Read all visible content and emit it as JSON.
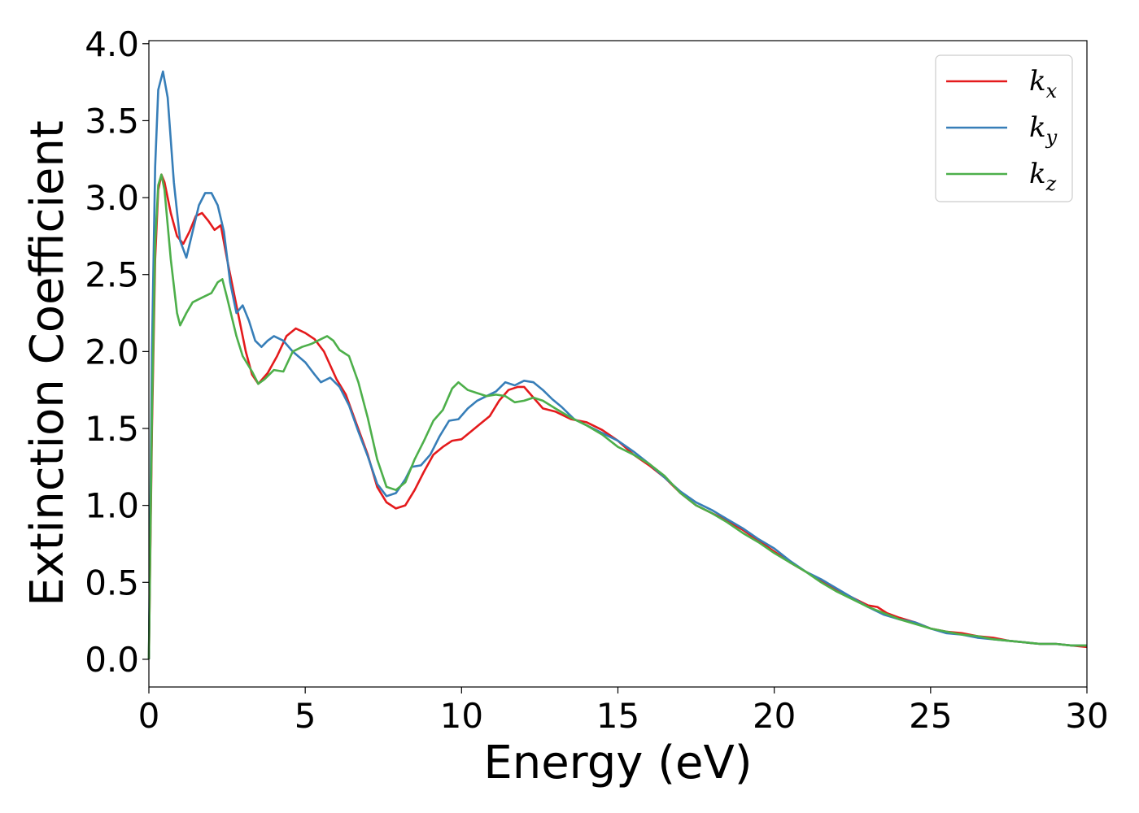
{
  "chart_data": {
    "type": "line",
    "title": "",
    "xlabel": "Energy (eV)",
    "ylabel": "Extinction Coefficient",
    "xlim": [
      0,
      30
    ],
    "ylim": [
      -0.18,
      4.02
    ],
    "xticks": [
      0,
      5,
      10,
      15,
      20,
      25,
      30
    ],
    "xtick_labels": [
      "0",
      "5",
      "10",
      "15",
      "20",
      "25",
      "30"
    ],
    "yticks": [
      0.0,
      0.5,
      1.0,
      1.5,
      2.0,
      2.5,
      3.0,
      3.5,
      4.0
    ],
    "ytick_labels": [
      "0.0",
      "0.5",
      "1.0",
      "1.5",
      "2.0",
      "2.5",
      "3.0",
      "3.5",
      "4.0"
    ],
    "grid": false,
    "legend_position": "top-right",
    "series": [
      {
        "name": "k",
        "subscript": "x",
        "color": "#e41a1c",
        "points": [
          [
            0,
            0
          ],
          [
            0.1,
            1.5
          ],
          [
            0.2,
            2.6
          ],
          [
            0.3,
            3.05
          ],
          [
            0.4,
            3.15
          ],
          [
            0.5,
            3.1
          ],
          [
            0.7,
            2.9
          ],
          [
            0.9,
            2.75
          ],
          [
            1.1,
            2.7
          ],
          [
            1.3,
            2.78
          ],
          [
            1.5,
            2.88
          ],
          [
            1.7,
            2.9
          ],
          [
            1.9,
            2.85
          ],
          [
            2.1,
            2.79
          ],
          [
            2.3,
            2.82
          ],
          [
            2.5,
            2.6
          ],
          [
            2.8,
            2.3
          ],
          [
            3.1,
            2.0
          ],
          [
            3.3,
            1.85
          ],
          [
            3.5,
            1.79
          ],
          [
            3.8,
            1.86
          ],
          [
            4.1,
            1.97
          ],
          [
            4.4,
            2.1
          ],
          [
            4.7,
            2.15
          ],
          [
            5.0,
            2.12
          ],
          [
            5.3,
            2.08
          ],
          [
            5.6,
            2.0
          ],
          [
            6.0,
            1.82
          ],
          [
            6.3,
            1.72
          ],
          [
            6.6,
            1.55
          ],
          [
            7.0,
            1.33
          ],
          [
            7.3,
            1.12
          ],
          [
            7.6,
            1.02
          ],
          [
            7.9,
            0.98
          ],
          [
            8.2,
            1.0
          ],
          [
            8.5,
            1.1
          ],
          [
            8.8,
            1.22
          ],
          [
            9.1,
            1.33
          ],
          [
            9.4,
            1.38
          ],
          [
            9.7,
            1.42
          ],
          [
            10.0,
            1.43
          ],
          [
            10.3,
            1.48
          ],
          [
            10.6,
            1.53
          ],
          [
            10.9,
            1.58
          ],
          [
            11.2,
            1.68
          ],
          [
            11.5,
            1.75
          ],
          [
            11.8,
            1.77
          ],
          [
            12.0,
            1.77
          ],
          [
            12.3,
            1.7
          ],
          [
            12.6,
            1.63
          ],
          [
            13.0,
            1.61
          ],
          [
            13.5,
            1.56
          ],
          [
            14.0,
            1.54
          ],
          [
            14.5,
            1.49
          ],
          [
            15.0,
            1.42
          ],
          [
            15.5,
            1.33
          ],
          [
            16.0,
            1.26
          ],
          [
            16.5,
            1.18
          ],
          [
            17.0,
            1.08
          ],
          [
            17.5,
            1.0
          ],
          [
            18.0,
            0.95
          ],
          [
            18.5,
            0.9
          ],
          [
            19.0,
            0.84
          ],
          [
            19.5,
            0.77
          ],
          [
            20.0,
            0.7
          ],
          [
            20.5,
            0.63
          ],
          [
            21.0,
            0.57
          ],
          [
            21.5,
            0.51
          ],
          [
            22.0,
            0.45
          ],
          [
            22.5,
            0.4
          ],
          [
            23.0,
            0.35
          ],
          [
            23.3,
            0.34
          ],
          [
            23.6,
            0.3
          ],
          [
            24.0,
            0.27
          ],
          [
            24.5,
            0.24
          ],
          [
            25.0,
            0.2
          ],
          [
            25.5,
            0.18
          ],
          [
            26.0,
            0.17
          ],
          [
            26.5,
            0.15
          ],
          [
            27.0,
            0.14
          ],
          [
            27.5,
            0.12
          ],
          [
            28.0,
            0.11
          ],
          [
            28.5,
            0.1
          ],
          [
            29.0,
            0.1
          ],
          [
            29.5,
            0.09
          ],
          [
            30.0,
            0.08
          ]
        ]
      },
      {
        "name": "k",
        "subscript": "y",
        "color": "#377eb8",
        "points": [
          [
            0,
            0
          ],
          [
            0.1,
            2.0
          ],
          [
            0.2,
            3.2
          ],
          [
            0.3,
            3.7
          ],
          [
            0.45,
            3.82
          ],
          [
            0.6,
            3.65
          ],
          [
            0.8,
            3.1
          ],
          [
            1.0,
            2.72
          ],
          [
            1.2,
            2.61
          ],
          [
            1.4,
            2.78
          ],
          [
            1.6,
            2.95
          ],
          [
            1.8,
            3.03
          ],
          [
            2.0,
            3.03
          ],
          [
            2.2,
            2.95
          ],
          [
            2.4,
            2.78
          ],
          [
            2.6,
            2.45
          ],
          [
            2.8,
            2.25
          ],
          [
            3.0,
            2.3
          ],
          [
            3.2,
            2.2
          ],
          [
            3.4,
            2.07
          ],
          [
            3.6,
            2.03
          ],
          [
            3.8,
            2.07
          ],
          [
            4.0,
            2.1
          ],
          [
            4.3,
            2.07
          ],
          [
            4.6,
            2.0
          ],
          [
            5.0,
            1.93
          ],
          [
            5.3,
            1.85
          ],
          [
            5.5,
            1.8
          ],
          [
            5.8,
            1.83
          ],
          [
            6.1,
            1.77
          ],
          [
            6.4,
            1.65
          ],
          [
            6.7,
            1.48
          ],
          [
            7.0,
            1.32
          ],
          [
            7.3,
            1.14
          ],
          [
            7.6,
            1.06
          ],
          [
            7.9,
            1.08
          ],
          [
            8.2,
            1.17
          ],
          [
            8.4,
            1.25
          ],
          [
            8.7,
            1.26
          ],
          [
            9.0,
            1.33
          ],
          [
            9.3,
            1.45
          ],
          [
            9.6,
            1.55
          ],
          [
            9.9,
            1.56
          ],
          [
            10.2,
            1.63
          ],
          [
            10.5,
            1.68
          ],
          [
            10.8,
            1.71
          ],
          [
            11.1,
            1.74
          ],
          [
            11.4,
            1.8
          ],
          [
            11.7,
            1.78
          ],
          [
            12.0,
            1.81
          ],
          [
            12.3,
            1.8
          ],
          [
            12.6,
            1.75
          ],
          [
            12.9,
            1.69
          ],
          [
            13.2,
            1.64
          ],
          [
            13.6,
            1.56
          ],
          [
            14.0,
            1.52
          ],
          [
            14.5,
            1.47
          ],
          [
            15.0,
            1.42
          ],
          [
            15.5,
            1.35
          ],
          [
            16.0,
            1.27
          ],
          [
            16.5,
            1.18
          ],
          [
            17.0,
            1.09
          ],
          [
            17.5,
            1.02
          ],
          [
            18.0,
            0.97
          ],
          [
            18.5,
            0.91
          ],
          [
            19.0,
            0.85
          ],
          [
            19.5,
            0.78
          ],
          [
            20.0,
            0.72
          ],
          [
            20.5,
            0.64
          ],
          [
            21.0,
            0.57
          ],
          [
            21.5,
            0.52
          ],
          [
            22.0,
            0.46
          ],
          [
            22.5,
            0.4
          ],
          [
            23.0,
            0.34
          ],
          [
            23.5,
            0.29
          ],
          [
            24.0,
            0.26
          ],
          [
            24.5,
            0.24
          ],
          [
            25.0,
            0.2
          ],
          [
            25.5,
            0.17
          ],
          [
            26.0,
            0.16
          ],
          [
            26.5,
            0.14
          ],
          [
            27.0,
            0.13
          ],
          [
            27.5,
            0.12
          ],
          [
            28.0,
            0.11
          ],
          [
            28.5,
            0.1
          ],
          [
            29.0,
            0.1
          ],
          [
            29.5,
            0.09
          ],
          [
            30.0,
            0.09
          ]
        ]
      },
      {
        "name": "k",
        "subscript": "z",
        "color": "#4daf4a",
        "points": [
          [
            0,
            0
          ],
          [
            0.1,
            1.6
          ],
          [
            0.2,
            2.7
          ],
          [
            0.3,
            3.08
          ],
          [
            0.4,
            3.15
          ],
          [
            0.5,
            3.05
          ],
          [
            0.7,
            2.6
          ],
          [
            0.9,
            2.25
          ],
          [
            1.0,
            2.17
          ],
          [
            1.2,
            2.25
          ],
          [
            1.4,
            2.32
          ],
          [
            1.7,
            2.35
          ],
          [
            2.0,
            2.38
          ],
          [
            2.2,
            2.45
          ],
          [
            2.35,
            2.47
          ],
          [
            2.5,
            2.35
          ],
          [
            2.8,
            2.1
          ],
          [
            3.0,
            1.97
          ],
          [
            3.3,
            1.87
          ],
          [
            3.5,
            1.79
          ],
          [
            3.7,
            1.82
          ],
          [
            4.0,
            1.88
          ],
          [
            4.3,
            1.87
          ],
          [
            4.6,
            2.0
          ],
          [
            4.9,
            2.03
          ],
          [
            5.2,
            2.05
          ],
          [
            5.5,
            2.08
          ],
          [
            5.7,
            2.1
          ],
          [
            5.9,
            2.07
          ],
          [
            6.1,
            2.01
          ],
          [
            6.4,
            1.97
          ],
          [
            6.7,
            1.8
          ],
          [
            7.0,
            1.57
          ],
          [
            7.3,
            1.3
          ],
          [
            7.6,
            1.12
          ],
          [
            7.9,
            1.1
          ],
          [
            8.2,
            1.15
          ],
          [
            8.5,
            1.3
          ],
          [
            8.8,
            1.42
          ],
          [
            9.1,
            1.55
          ],
          [
            9.4,
            1.62
          ],
          [
            9.7,
            1.76
          ],
          [
            9.9,
            1.8
          ],
          [
            10.2,
            1.75
          ],
          [
            10.5,
            1.73
          ],
          [
            10.8,
            1.71
          ],
          [
            11.1,
            1.72
          ],
          [
            11.4,
            1.71
          ],
          [
            11.7,
            1.67
          ],
          [
            12.0,
            1.68
          ],
          [
            12.3,
            1.7
          ],
          [
            12.6,
            1.68
          ],
          [
            13.0,
            1.63
          ],
          [
            13.5,
            1.57
          ],
          [
            14.0,
            1.52
          ],
          [
            14.5,
            1.46
          ],
          [
            15.0,
            1.38
          ],
          [
            15.5,
            1.33
          ],
          [
            16.0,
            1.27
          ],
          [
            16.5,
            1.19
          ],
          [
            17.0,
            1.08
          ],
          [
            17.5,
            1.0
          ],
          [
            18.0,
            0.95
          ],
          [
            18.5,
            0.89
          ],
          [
            19.0,
            0.82
          ],
          [
            19.5,
            0.76
          ],
          [
            20.0,
            0.69
          ],
          [
            20.5,
            0.63
          ],
          [
            21.0,
            0.57
          ],
          [
            21.5,
            0.5
          ],
          [
            22.0,
            0.44
          ],
          [
            22.5,
            0.39
          ],
          [
            23.0,
            0.34
          ],
          [
            23.5,
            0.3
          ],
          [
            24.0,
            0.26
          ],
          [
            24.5,
            0.23
          ],
          [
            25.0,
            0.2
          ],
          [
            25.5,
            0.18
          ],
          [
            26.0,
            0.16
          ],
          [
            26.5,
            0.15
          ],
          [
            27.0,
            0.13
          ],
          [
            27.5,
            0.12
          ],
          [
            28.0,
            0.11
          ],
          [
            28.5,
            0.1
          ],
          [
            29.0,
            0.1
          ],
          [
            29.5,
            0.09
          ],
          [
            30.0,
            0.09
          ]
        ]
      }
    ]
  }
}
